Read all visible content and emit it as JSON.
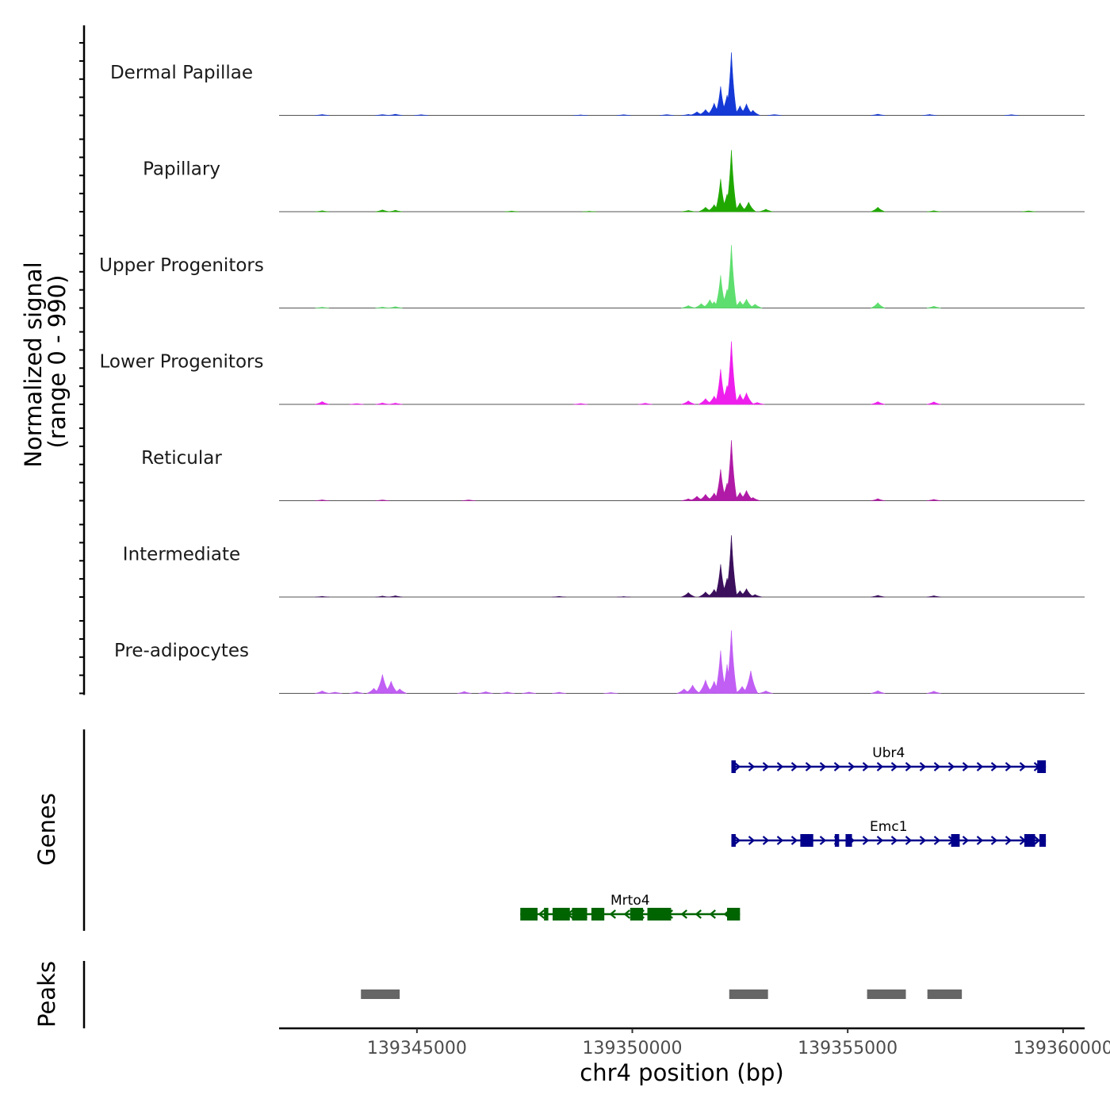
{
  "chart_data": {
    "type": "area",
    "title": "",
    "xlabel": "chr4 position (bp)",
    "signal_ylabel": [
      "Normalized signal",
      "(range 0 - 990)"
    ],
    "signal_range": [
      0,
      990
    ],
    "xlim": [
      139341800,
      139360500
    ],
    "x_ticks": [
      139345000,
      139350000,
      139355000,
      139360000
    ],
    "x_tick_labels": [
      "139345000",
      "139350000",
      "139355000",
      "139360000"
    ],
    "tracks": [
      {
        "name": "Dermal Papillae",
        "color": "#1539d6",
        "peaks": [
          [
            139342800,
            14
          ],
          [
            139344200,
            12
          ],
          [
            139344500,
            18
          ],
          [
            139345100,
            10
          ],
          [
            139348800,
            8
          ],
          [
            139349800,
            10
          ],
          [
            139350800,
            12
          ],
          [
            139351300,
            16
          ],
          [
            139351500,
            55
          ],
          [
            139351700,
            90
          ],
          [
            139351900,
            190
          ],
          [
            139352050,
            460
          ],
          [
            139352200,
            320
          ],
          [
            139352300,
            1000
          ],
          [
            139352500,
            150
          ],
          [
            139352650,
            180
          ],
          [
            139352800,
            80
          ],
          [
            139353300,
            12
          ],
          [
            139355700,
            18
          ],
          [
            139356900,
            14
          ],
          [
            139358800,
            10
          ]
        ]
      },
      {
        "name": "Papillary",
        "color": "#20a800",
        "peaks": [
          [
            139342800,
            16
          ],
          [
            139344200,
            28
          ],
          [
            139344500,
            24
          ],
          [
            139347200,
            10
          ],
          [
            139349000,
            8
          ],
          [
            139351300,
            20
          ],
          [
            139351700,
            70
          ],
          [
            139351900,
            110
          ],
          [
            139352050,
            520
          ],
          [
            139352200,
            280
          ],
          [
            139352300,
            980
          ],
          [
            139352500,
            140
          ],
          [
            139352700,
            150
          ],
          [
            139353100,
            40
          ],
          [
            139355700,
            70
          ],
          [
            139357000,
            16
          ],
          [
            139359200,
            12
          ]
        ]
      },
      {
        "name": "Upper Progenitors",
        "color": "#5ede6e",
        "peaks": [
          [
            139342800,
            14
          ],
          [
            139344200,
            16
          ],
          [
            139344500,
            22
          ],
          [
            139351300,
            40
          ],
          [
            139351600,
            70
          ],
          [
            139351800,
            130
          ],
          [
            139351900,
            100
          ],
          [
            139352050,
            520
          ],
          [
            139352200,
            300
          ],
          [
            139352300,
            1000
          ],
          [
            139352500,
            110
          ],
          [
            139352650,
            140
          ],
          [
            139352850,
            60
          ],
          [
            139355700,
            85
          ],
          [
            139357000,
            28
          ]
        ]
      },
      {
        "name": "Lower Progenitors",
        "color": "#ee1eed",
        "peaks": [
          [
            139342800,
            44
          ],
          [
            139343600,
            12
          ],
          [
            139344200,
            22
          ],
          [
            139344500,
            20
          ],
          [
            139348800,
            14
          ],
          [
            139350300,
            18
          ],
          [
            139351300,
            55
          ],
          [
            139351700,
            90
          ],
          [
            139351900,
            130
          ],
          [
            139352050,
            560
          ],
          [
            139352200,
            300
          ],
          [
            139352300,
            1000
          ],
          [
            139352500,
            160
          ],
          [
            139352650,
            180
          ],
          [
            139352900,
            30
          ],
          [
            139355700,
            42
          ],
          [
            139357000,
            40
          ]
        ]
      },
      {
        "name": "Reticular",
        "color": "#b01aa6",
        "peaks": [
          [
            139342800,
            14
          ],
          [
            139344200,
            12
          ],
          [
            139346200,
            12
          ],
          [
            139351300,
            30
          ],
          [
            139351500,
            70
          ],
          [
            139351700,
            100
          ],
          [
            139351900,
            120
          ],
          [
            139352050,
            500
          ],
          [
            139352200,
            280
          ],
          [
            139352300,
            960
          ],
          [
            139352500,
            130
          ],
          [
            139352650,
            160
          ],
          [
            139352800,
            50
          ],
          [
            139355700,
            32
          ],
          [
            139357000,
            20
          ]
        ]
      },
      {
        "name": "Intermediate",
        "color": "#3b0f5c",
        "peaks": [
          [
            139342800,
            10
          ],
          [
            139344200,
            16
          ],
          [
            139344500,
            20
          ],
          [
            139348300,
            10
          ],
          [
            139349800,
            8
          ],
          [
            139351300,
            70
          ],
          [
            139351700,
            80
          ],
          [
            139351900,
            120
          ],
          [
            139352050,
            520
          ],
          [
            139352200,
            300
          ],
          [
            139352300,
            980
          ],
          [
            139352500,
            100
          ],
          [
            139352650,
            130
          ],
          [
            139352850,
            40
          ],
          [
            139355700,
            26
          ],
          [
            139357000,
            20
          ]
        ]
      },
      {
        "name": "Pre-adipocytes",
        "color": "#c15ef4",
        "peaks": [
          [
            139342800,
            40
          ],
          [
            139343100,
            20
          ],
          [
            139343600,
            28
          ],
          [
            139344000,
            80
          ],
          [
            139344200,
            300
          ],
          [
            139344400,
            190
          ],
          [
            139344600,
            70
          ],
          [
            139346100,
            30
          ],
          [
            139346600,
            26
          ],
          [
            139347100,
            22
          ],
          [
            139347600,
            20
          ],
          [
            139348300,
            18
          ],
          [
            139349500,
            14
          ],
          [
            139351200,
            70
          ],
          [
            139351400,
            130
          ],
          [
            139351700,
            210
          ],
          [
            139351900,
            190
          ],
          [
            139352050,
            680
          ],
          [
            139352200,
            460
          ],
          [
            139352300,
            1000
          ],
          [
            139352550,
            110
          ],
          [
            139352750,
            360
          ],
          [
            139353100,
            40
          ],
          [
            139355700,
            42
          ],
          [
            139357000,
            34
          ]
        ]
      }
    ],
    "genes_ylabel": "Genes",
    "genes": [
      {
        "name": "Ubr4",
        "strand": "+",
        "color": "#00008b",
        "start": 139352300,
        "end": 139359600,
        "exons": [
          [
            139352300,
            139352400
          ],
          [
            139359400,
            139359600
          ]
        ]
      },
      {
        "name": "Emc1",
        "strand": "+",
        "color": "#00008b",
        "start": 139352300,
        "end": 139359600,
        "exons": [
          [
            139352300,
            139352400
          ],
          [
            139353900,
            139354200
          ],
          [
            139354700,
            139354800
          ],
          [
            139354950,
            139355100
          ],
          [
            139357400,
            139357600
          ],
          [
            139359100,
            139359350
          ],
          [
            139359450,
            139359600
          ]
        ]
      },
      {
        "name": "Mrto4",
        "strand": "-",
        "color": "#006400",
        "start": 139347400,
        "end": 139352500,
        "exons": [
          [
            139347400,
            139347800
          ],
          [
            139347950,
            139348050
          ],
          [
            139348150,
            139348550
          ],
          [
            139348600,
            139348950
          ],
          [
            139349050,
            139349350
          ],
          [
            139349950,
            139350250
          ],
          [
            139350350,
            139350900
          ],
          [
            139352200,
            139352500
          ]
        ]
      }
    ],
    "peaks_ylabel": "Peaks",
    "peak_regions": [
      [
        139343700,
        139344600
      ],
      [
        139352250,
        139353150
      ],
      [
        139355450,
        139356350
      ],
      [
        139356850,
        139357650
      ]
    ]
  }
}
